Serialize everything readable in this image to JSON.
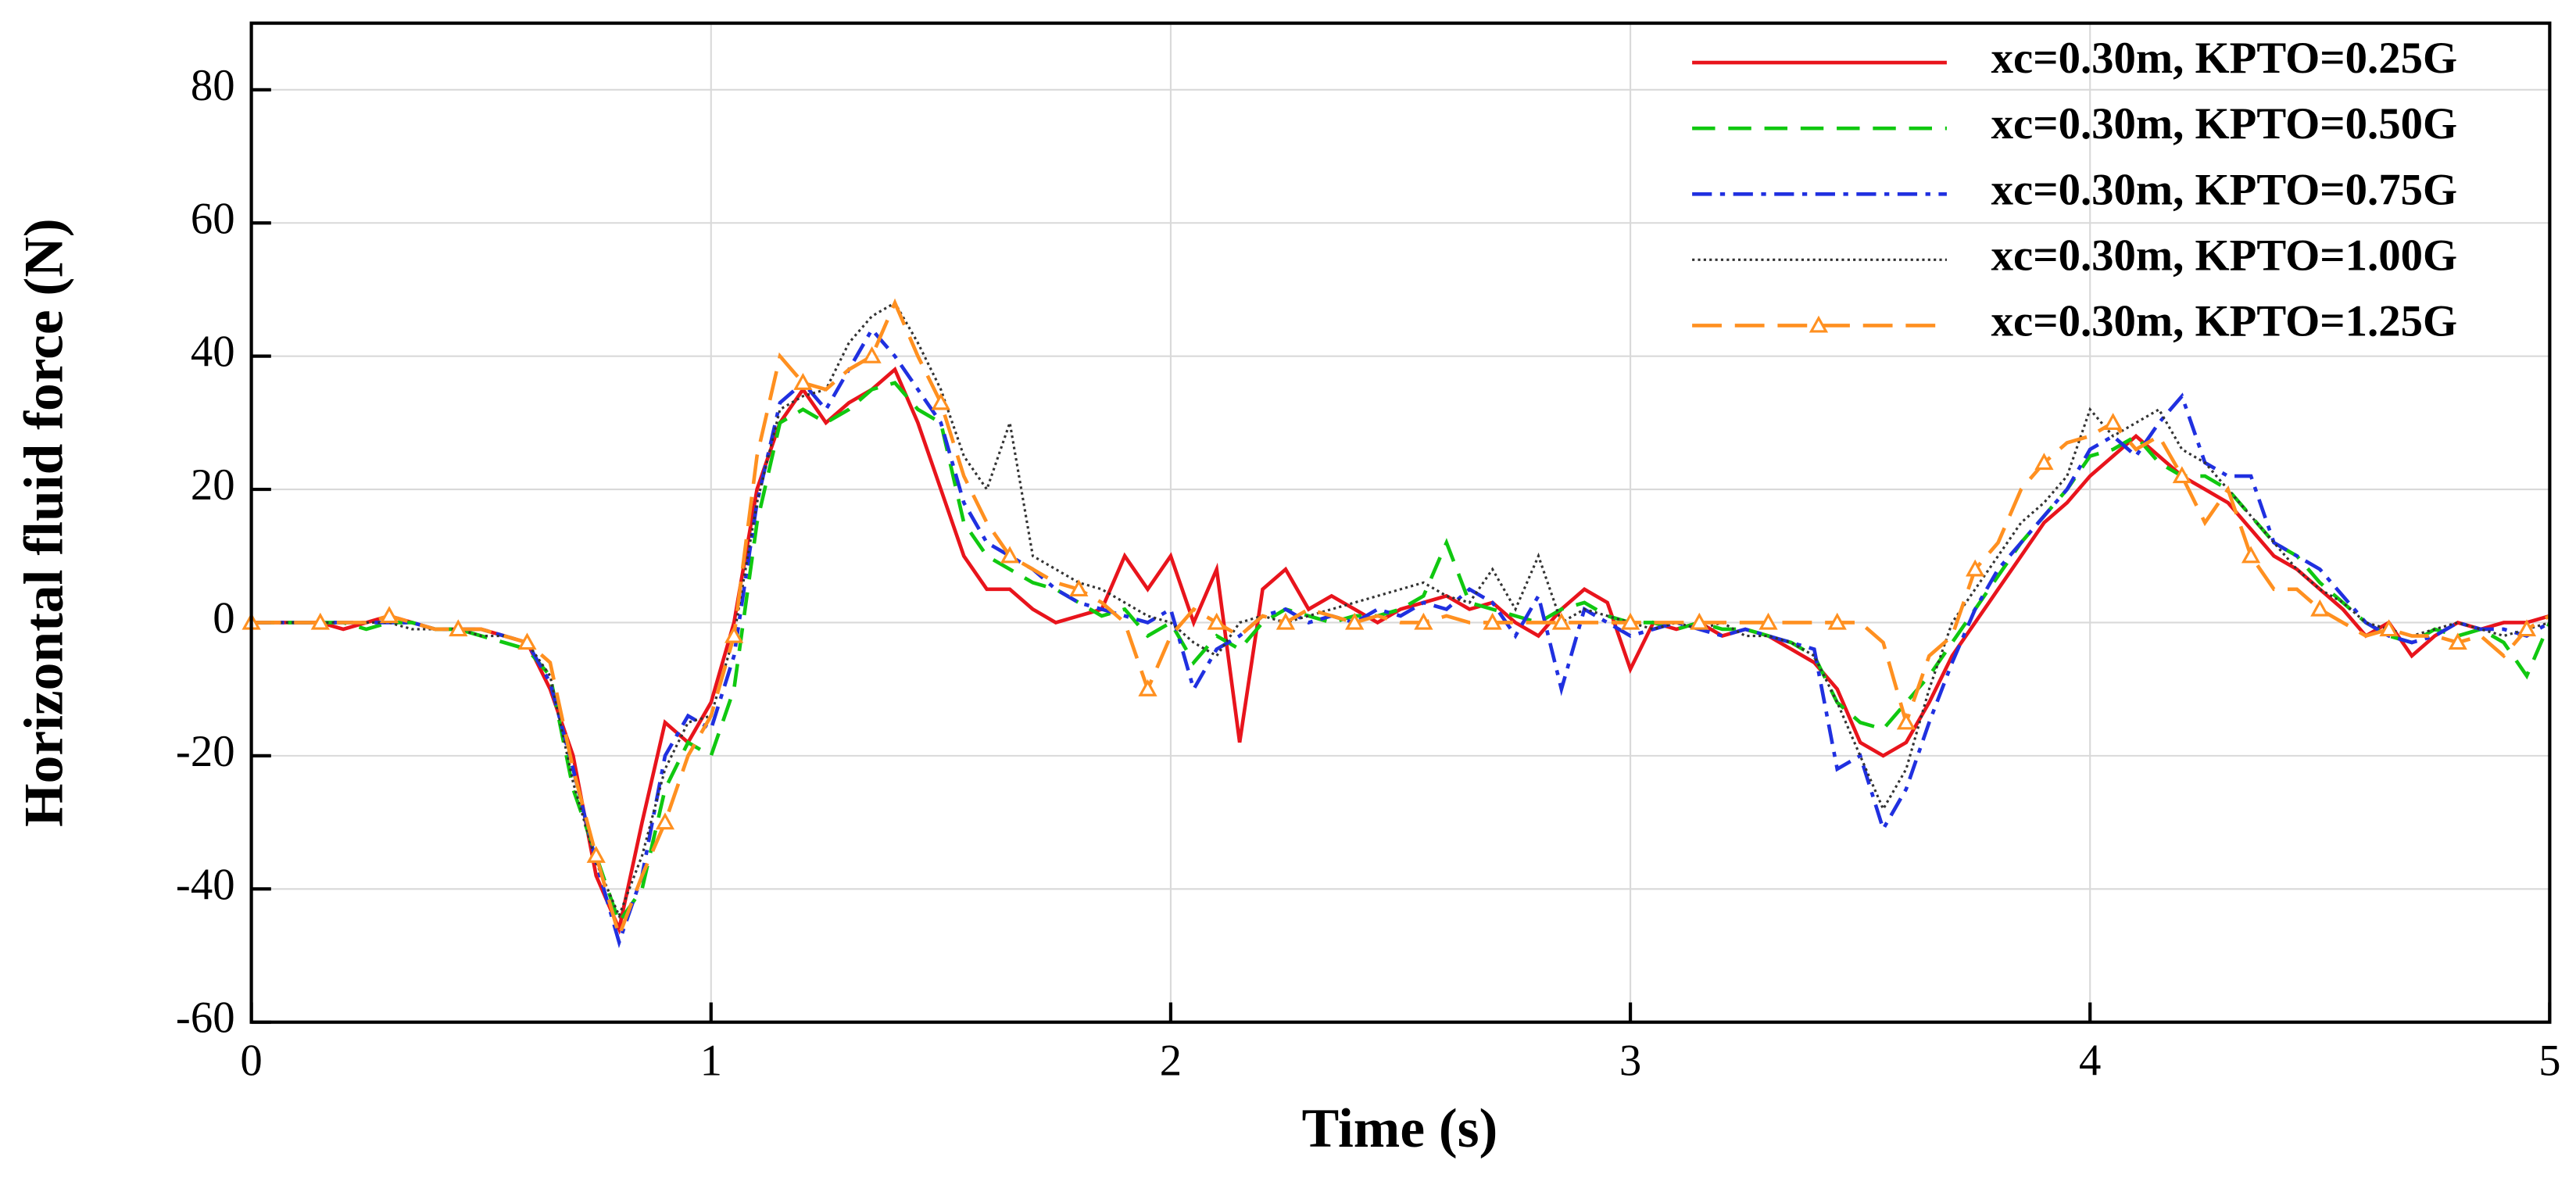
{
  "chart_data": {
    "type": "line",
    "xlabel": "Time (s)",
    "ylabel": "Horizontal fluid force (N)",
    "xlim": [
      0,
      5
    ],
    "xticks": [
      0,
      1,
      2,
      3,
      4,
      5
    ],
    "ylim": [
      -60,
      90
    ],
    "yticks": [
      -60,
      -40,
      -20,
      0,
      20,
      40,
      60,
      80
    ],
    "grid": true,
    "legend": "upper right",
    "x": [
      0,
      0.05,
      0.1,
      0.15,
      0.2,
      0.25,
      0.3,
      0.35,
      0.4,
      0.45,
      0.5,
      0.55,
      0.6,
      0.65,
      0.7,
      0.75,
      0.8,
      0.85,
      0.9,
      0.95,
      1,
      1.05,
      1.1,
      1.15,
      1.2,
      1.25,
      1.3,
      1.35,
      1.4,
      1.45,
      1.5,
      1.55,
      1.6,
      1.65,
      1.7,
      1.75,
      1.8,
      1.85,
      1.9,
      1.95,
      2,
      2.05,
      2.1,
      2.15,
      2.2,
      2.25,
      2.3,
      2.35,
      2.4,
      2.45,
      2.5,
      2.55,
      2.6,
      2.65,
      2.7,
      2.75,
      2.8,
      2.85,
      2.9,
      2.95,
      3,
      3.05,
      3.1,
      3.15,
      3.2,
      3.25,
      3.3,
      3.35,
      3.4,
      3.45,
      3.5,
      3.55,
      3.6,
      3.65,
      3.7,
      3.75,
      3.8,
      3.85,
      3.9,
      3.95,
      4,
      4.05,
      4.1,
      4.15,
      4.2,
      4.25,
      4.3,
      4.35,
      4.4,
      4.45,
      4.5,
      4.55,
      4.6,
      4.65,
      4.7,
      4.75,
      4.8,
      4.85,
      4.9,
      4.95,
      5
    ],
    "series": [
      {
        "name": "xc=0.30m, KPTO=0.25G",
        "color": "#e8141c",
        "dash": "solid",
        "values": [
          0,
          0,
          0,
          0,
          -1,
          0,
          1,
          0,
          -1,
          -1,
          -1,
          -2,
          -3,
          -10,
          -20,
          -38,
          -46,
          -30,
          -15,
          -18,
          -12,
          0,
          20,
          30,
          35,
          30,
          33,
          35,
          38,
          30,
          20,
          10,
          5,
          5,
          2,
          0,
          1,
          2,
          10,
          5,
          10,
          0,
          8,
          -18,
          5,
          8,
          2,
          4,
          2,
          0,
          2,
          3,
          4,
          2,
          3,
          0,
          -2,
          2,
          5,
          3,
          -7,
          0,
          -1,
          0,
          -2,
          -1,
          -2,
          -4,
          -6,
          -10,
          -18,
          -20,
          -18,
          -12,
          -5,
          0,
          5,
          10,
          15,
          18,
          22,
          25,
          28,
          25,
          22,
          20,
          18,
          14,
          10,
          8,
          5,
          2,
          -2,
          0,
          -5,
          -2,
          0,
          -1,
          0,
          0,
          1
        ]
      },
      {
        "name": "xc=0.30m, KPTO=0.50G",
        "color": "#10c810",
        "dash": "dashed",
        "values": [
          0,
          0,
          0,
          0,
          0,
          -1,
          0,
          0,
          -1,
          -1,
          -2,
          -3,
          -4,
          -8,
          -25,
          -35,
          -45,
          -40,
          -25,
          -18,
          -20,
          -10,
          15,
          30,
          32,
          30,
          32,
          35,
          36,
          32,
          30,
          15,
          10,
          8,
          6,
          5,
          3,
          1,
          2,
          -2,
          0,
          -6,
          -2,
          -4,
          0,
          2,
          1,
          0,
          1,
          1,
          2,
          4,
          12,
          3,
          2,
          1,
          0,
          2,
          3,
          1,
          0,
          0,
          -1,
          0,
          -1,
          -1,
          -2,
          -3,
          -5,
          -12,
          -15,
          -16,
          -12,
          -8,
          -3,
          2,
          7,
          12,
          16,
          20,
          25,
          26,
          28,
          24,
          22,
          22,
          20,
          16,
          12,
          10,
          6,
          3,
          0,
          -2,
          -3,
          -1,
          -2,
          -1,
          -3,
          -8,
          0
        ]
      },
      {
        "name": "xc=0.30m, KPTO=0.75G",
        "color": "#2030e0",
        "dash": "dashdot",
        "values": [
          0,
          0,
          0,
          0,
          0,
          0,
          0,
          0,
          -1,
          -1,
          -1,
          -2,
          -3,
          -9,
          -22,
          -36,
          -48,
          -38,
          -20,
          -14,
          -16,
          -5,
          18,
          33,
          36,
          32,
          38,
          44,
          40,
          35,
          30,
          18,
          12,
          10,
          8,
          5,
          3,
          2,
          1,
          0,
          2,
          -10,
          -4,
          -2,
          1,
          2,
          0,
          1,
          0,
          2,
          1,
          3,
          2,
          5,
          3,
          -2,
          4,
          -10,
          2,
          0,
          -2,
          -1,
          0,
          -1,
          -2,
          -1,
          -2,
          -3,
          -4,
          -22,
          -20,
          -31,
          -25,
          -15,
          -6,
          2,
          8,
          12,
          16,
          20,
          26,
          28,
          25,
          30,
          34,
          24,
          22,
          22,
          12,
          10,
          8,
          4,
          0,
          -2,
          -3,
          -2,
          0,
          -1,
          -1,
          -2,
          0
        ]
      },
      {
        "name": "xc=0.30m, KPTO=1.00G",
        "color": "#333333",
        "dash": "dotted",
        "values": [
          0,
          0,
          0,
          0,
          0,
          0,
          0,
          -1,
          -1,
          -1,
          -2,
          -2,
          -3,
          -8,
          -24,
          -36,
          -44,
          -35,
          -22,
          -15,
          -14,
          -2,
          18,
          32,
          34,
          35,
          42,
          46,
          48,
          42,
          35,
          25,
          20,
          30,
          10,
          8,
          6,
          5,
          3,
          1,
          0,
          -3,
          -5,
          0,
          1,
          0,
          1,
          2,
          3,
          4,
          5,
          6,
          4,
          3,
          8,
          2,
          10,
          0,
          2,
          1,
          0,
          -1,
          0,
          -1,
          0,
          -2,
          -2,
          -3,
          -5,
          -12,
          -20,
          -28,
          -22,
          -10,
          0,
          5,
          10,
          15,
          18,
          22,
          32,
          28,
          30,
          32,
          26,
          24,
          20,
          16,
          12,
          8,
          5,
          3,
          0,
          -1,
          -2,
          -1,
          0,
          -1,
          -2,
          -1,
          0
        ]
      },
      {
        "name": "xc=0.30m, KPTO=1.25G",
        "color": "#ff9020",
        "dash": "longdash",
        "marker": "triangle",
        "values": [
          0,
          0,
          0,
          0,
          0,
          0,
          1,
          0,
          -1,
          -1,
          -1,
          -2,
          -3,
          -6,
          -22,
          -35,
          -47,
          -38,
          -30,
          -20,
          -14,
          -2,
          25,
          40,
          36,
          35,
          38,
          40,
          48,
          40,
          33,
          22,
          15,
          10,
          8,
          6,
          5,
          3,
          0,
          -10,
          -2,
          2,
          0,
          -2,
          1,
          0,
          2,
          1,
          0,
          1,
          0,
          0,
          1,
          0,
          0,
          0,
          0,
          0,
          0,
          0,
          0,
          0,
          0,
          0,
          0,
          0,
          0,
          0,
          0,
          0,
          0,
          -3,
          -15,
          -5,
          -2,
          8,
          12,
          20,
          24,
          27,
          28,
          30,
          26,
          28,
          22,
          15,
          20,
          10,
          5,
          5,
          2,
          0,
          -2,
          -1,
          -2,
          -2,
          -3,
          -2,
          -5,
          -1,
          1
        ]
      }
    ]
  }
}
